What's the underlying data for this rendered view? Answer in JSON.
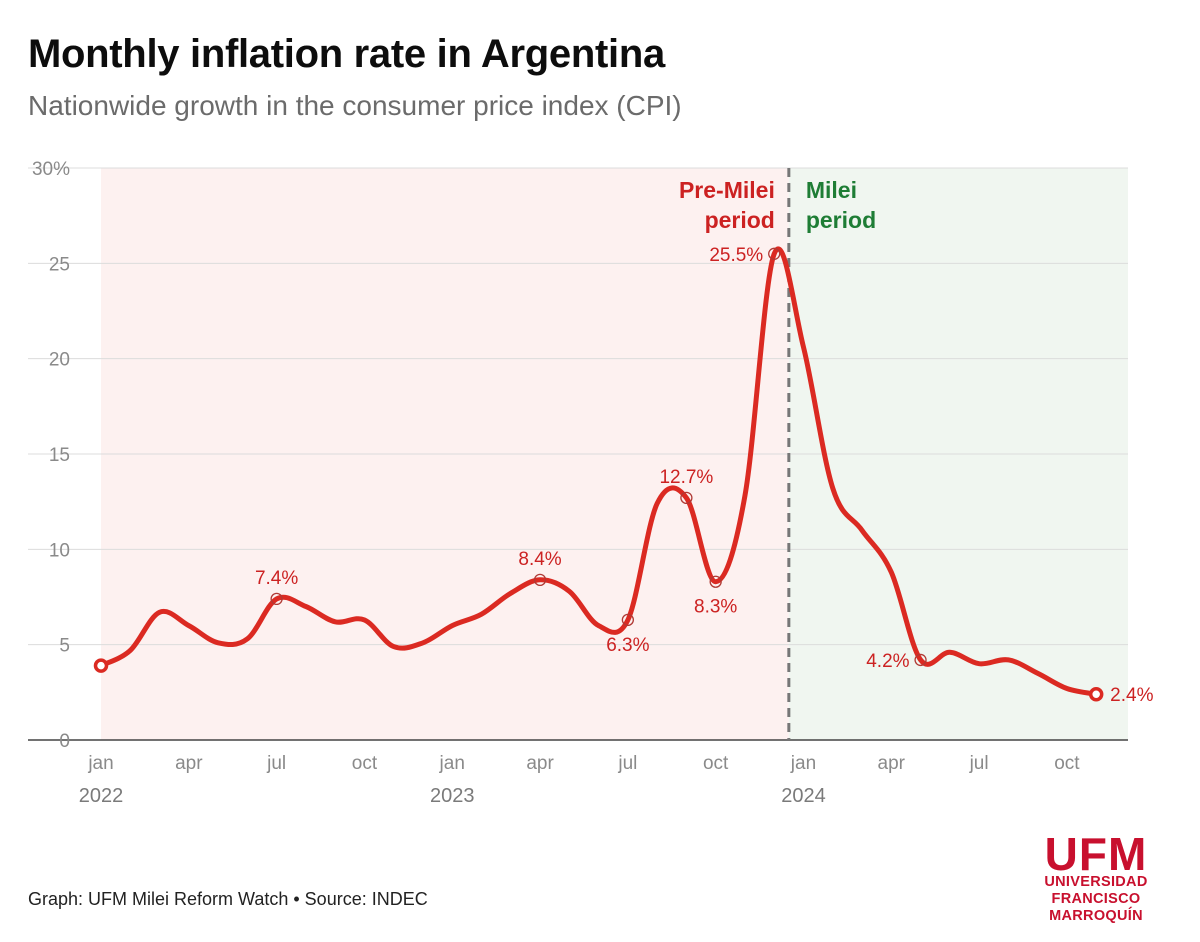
{
  "title": "Monthly inflation rate in Argentina",
  "subtitle": "Nationwide growth in the consumer price index (CPI)",
  "footer": "Graph: UFM Milei Reform Watch • Source: INDEC",
  "logo": {
    "main": "UFM",
    "line1": "UNIVERSIDAD",
    "line2": "FRANCISCO",
    "line3": "MARROQUÍN"
  },
  "colors": {
    "line": "#db2a22",
    "pre_shade": "#fdf1f0",
    "milei_shade": "#f0f6f0",
    "pre_label": "#cc2222",
    "milei_label": "#1e7d35",
    "divider": "#777777"
  },
  "chart_data": {
    "type": "line",
    "ylim": [
      0,
      30
    ],
    "yticks": [
      0,
      5,
      10,
      15,
      20,
      25,
      30
    ],
    "ytick_labels": [
      "0",
      "5",
      "10",
      "15",
      "20",
      "25",
      "30%"
    ],
    "grid": true,
    "x_labels": [
      {
        "month": 0,
        "label": "jan"
      },
      {
        "month": 3,
        "label": "apr"
      },
      {
        "month": 6,
        "label": "jul"
      },
      {
        "month": 9,
        "label": "oct"
      },
      {
        "month": 12,
        "label": "jan"
      },
      {
        "month": 15,
        "label": "apr"
      },
      {
        "month": 18,
        "label": "jul"
      },
      {
        "month": 21,
        "label": "oct"
      },
      {
        "month": 24,
        "label": "jan"
      },
      {
        "month": 27,
        "label": "apr"
      },
      {
        "month": 30,
        "label": "jul"
      },
      {
        "month": 33,
        "label": "oct"
      }
    ],
    "year_labels": [
      {
        "month": 0,
        "label": "2022"
      },
      {
        "month": 12,
        "label": "2023"
      },
      {
        "month": 24,
        "label": "2024"
      }
    ],
    "x": [
      "2022-01",
      "2022-02",
      "2022-03",
      "2022-04",
      "2022-05",
      "2022-06",
      "2022-07",
      "2022-08",
      "2022-09",
      "2022-10",
      "2022-11",
      "2022-12",
      "2023-01",
      "2023-02",
      "2023-03",
      "2023-04",
      "2023-05",
      "2023-06",
      "2023-07",
      "2023-08",
      "2023-09",
      "2023-10",
      "2023-11",
      "2023-12",
      "2024-01",
      "2024-02",
      "2024-03",
      "2024-04",
      "2024-05",
      "2024-06",
      "2024-07",
      "2024-08",
      "2024-09",
      "2024-10",
      "2024-11"
    ],
    "series": [
      {
        "values": [
          3.9,
          4.7,
          6.7,
          6.0,
          5.1,
          5.3,
          7.4,
          7.0,
          6.2,
          6.3,
          4.9,
          5.1,
          6.0,
          6.6,
          7.7,
          8.4,
          7.8,
          6.0,
          6.3,
          12.4,
          12.7,
          8.3,
          12.8,
          25.5,
          20.6,
          13.2,
          11.0,
          8.8,
          4.2,
          4.6,
          4.0,
          4.2,
          3.5,
          2.7,
          2.4
        ]
      }
    ],
    "highlight_labels": [
      {
        "index": 6,
        "text": "7.4%",
        "pos": "above"
      },
      {
        "index": 15,
        "text": "8.4%",
        "pos": "above"
      },
      {
        "index": 18,
        "text": "6.3%",
        "pos": "below"
      },
      {
        "index": 20,
        "text": "12.7%",
        "pos": "above"
      },
      {
        "index": 21,
        "text": "8.3%",
        "pos": "below"
      },
      {
        "index": 23,
        "text": "25.5%",
        "pos": "left"
      },
      {
        "index": 28,
        "text": "4.2%",
        "pos": "left"
      },
      {
        "index": 34,
        "text": "2.4%",
        "pos": "right"
      }
    ],
    "period_divider_month": 23.5,
    "periods": [
      {
        "label_line1": "Pre-Milei",
        "label_line2": "period"
      },
      {
        "label_line1": "Milei",
        "label_line2": "period"
      }
    ]
  }
}
